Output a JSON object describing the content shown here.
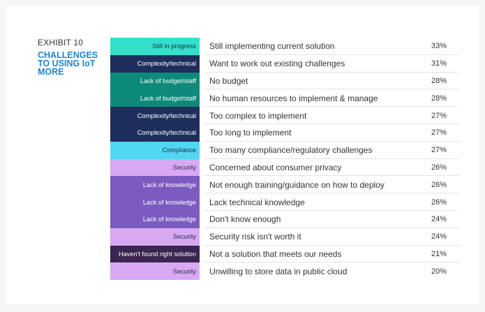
{
  "exhibit_label": "EXHIBIT 10",
  "heading": "CHALLENGES TO USING IoT MORE",
  "chart_data": {
    "type": "table",
    "columns": [
      "category",
      "challenge",
      "percent"
    ],
    "rows": [
      {
        "category": "Still in progress",
        "reason": "Still implementing current solution",
        "value": 33,
        "label": "33%",
        "color": "#33e0c9",
        "text_color": "#1e2a4a"
      },
      {
        "category": "Complexity/technical",
        "reason": "Want to work out existing challenges",
        "value": 31,
        "label": "31%",
        "color": "#1e2e5c",
        "text_color": "#ffffff"
      },
      {
        "category": "Lack of budget/staff",
        "reason": "No budget",
        "value": 28,
        "label": "28%",
        "color": "#0e8a7a",
        "text_color": "#ffffff"
      },
      {
        "category": "Lack of budget/staff",
        "reason": "No human resources to implement & manage",
        "value": 28,
        "label": "28%",
        "color": "#0e8a7a",
        "text_color": "#ffffff"
      },
      {
        "category": "Complexity/technical",
        "reason": "Too complex to implement",
        "value": 27,
        "label": "27%",
        "color": "#1e2e5c",
        "text_color": "#ffffff"
      },
      {
        "category": "Complexity/technical",
        "reason": "Too long to implement",
        "value": 27,
        "label": "27%",
        "color": "#1e2e5c",
        "text_color": "#ffffff"
      },
      {
        "category": "Compliance",
        "reason": "Too many compliance/regulatory challenges",
        "value": 27,
        "label": "27%",
        "color": "#4fd8f2",
        "text_color": "#1e2a4a"
      },
      {
        "category": "Security",
        "reason": "Concerned about consumer privacy",
        "value": 26,
        "label": "26%",
        "color": "#d9a8f2",
        "text_color": "#1e2a4a"
      },
      {
        "category": "Lack of knowledge",
        "reason": "Not enough training/guidance on how to deploy",
        "value": 26,
        "label": "26%",
        "color": "#7b5bbf",
        "text_color": "#ffffff"
      },
      {
        "category": "Lack of knowledge",
        "reason": "Lack technical knowledge",
        "value": 26,
        "label": "26%",
        "color": "#7b5bbf",
        "text_color": "#ffffff"
      },
      {
        "category": "Lack of knowledge",
        "reason": "Don't know enough",
        "value": 24,
        "label": "24%",
        "color": "#7b5bbf",
        "text_color": "#ffffff"
      },
      {
        "category": "Security",
        "reason": "Security risk isn't worth it",
        "value": 24,
        "label": "24%",
        "color": "#d9a8f2",
        "text_color": "#1e2a4a"
      },
      {
        "category": "Haven't found right solution",
        "reason": "Not a solution that meets our needs",
        "value": 21,
        "label": "21%",
        "color": "#3a2450",
        "text_color": "#ffffff"
      },
      {
        "category": "Security",
        "reason": "Unwilling to store data in public cloud",
        "value": 20,
        "label": "20%",
        "color": "#d9a8f2",
        "text_color": "#1e2a4a"
      }
    ]
  }
}
